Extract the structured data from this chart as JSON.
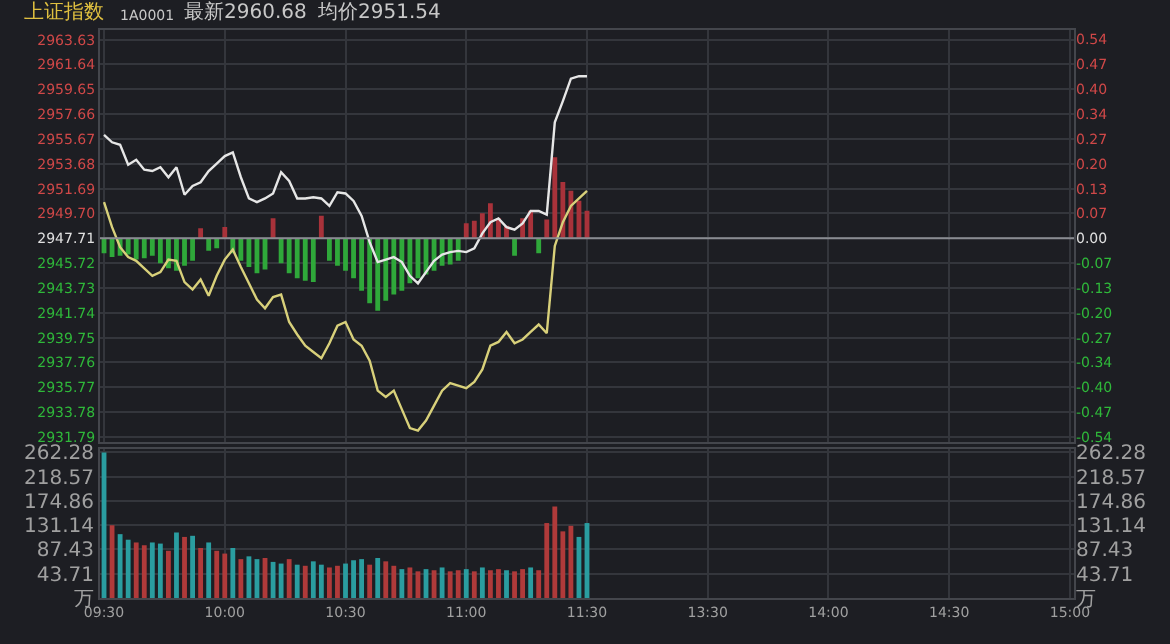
{
  "chart_data": [
    {
      "type": "line",
      "title": "上证指数",
      "annotations": [
        "1A0001",
        "最新2960.68",
        "均价2951.54"
      ],
      "categories": [
        null,
        null,
        null,
        null,
        null,
        null,
        null,
        null,
        null,
        null,
        null,
        null,
        null,
        null,
        null,
        null,
        null,
        null,
        null,
        null,
        null,
        null,
        null,
        null,
        null,
        null,
        null,
        null,
        null,
        null,
        null,
        null,
        null,
        null,
        null,
        null,
        null,
        null,
        null,
        null,
        null,
        null,
        null,
        null,
        null,
        null,
        null,
        null,
        null,
        null,
        null,
        null,
        null,
        null,
        null,
        null,
        null,
        null,
        null,
        null,
        null,
        null,
        null,
        null,
        null,
        null,
        null,
        null,
        null,
        null,
        null,
        null,
        null,
        null,
        null,
        null,
        null,
        null,
        null,
        null,
        null,
        null,
        null,
        null,
        null,
        null,
        null,
        null,
        null,
        null,
        null,
        null,
        null,
        null,
        null,
        null,
        null,
        null,
        null,
        null,
        null,
        null,
        null,
        null,
        null,
        null,
        null,
        null,
        null,
        null,
        null,
        null,
        null,
        null,
        null,
        null,
        null,
        null,
        null,
        null,
        null
      ],
      "ylim": [
        2931.4,
        2964.4
      ],
      "yticks": [
        {
          "value": 2963.63,
          "label": "2963.63"
        },
        {
          "value": 2961.64,
          "label": "2961.64"
        },
        {
          "value": 2959.65,
          "label": "2959.65"
        },
        {
          "value": 2957.66,
          "label": "2957.66"
        },
        {
          "value": 2955.67,
          "label": "2955.67"
        },
        {
          "value": 2953.68,
          "label": "2953.68"
        },
        {
          "value": 2951.69,
          "label": "2951.69"
        },
        {
          "value": 2949.7,
          "label": "2949.70"
        },
        {
          "value": 2947.71,
          "label": "2947.71"
        },
        {
          "value": 2945.72,
          "label": "2945.72"
        },
        {
          "value": 2943.73,
          "label": "2943.73"
        },
        {
          "value": 2941.74,
          "label": "2941.74"
        },
        {
          "value": 2939.75,
          "label": "2939.75"
        },
        {
          "value": 2937.76,
          "label": "2937.76"
        },
        {
          "value": 2935.77,
          "label": "2935.77"
        },
        {
          "value": 2933.78,
          "label": "2933.78"
        },
        {
          "value": 2931.79,
          "label": "2931.79"
        }
      ],
      "y2lim": [
        -0.553,
        0.566
      ],
      "y2ticks": [
        {
          "value": 0.54,
          "label": "0.54"
        },
        {
          "value": 0.4725,
          "label": "0.47"
        },
        {
          "value": 0.405,
          "label": "0.40"
        },
        {
          "value": 0.3375,
          "label": "0.34"
        },
        {
          "value": 0.27,
          "label": "0.27"
        },
        {
          "value": 0.2025,
          "label": "0.20"
        },
        {
          "value": 0.135,
          "label": "0.13"
        },
        {
          "value": 0.0675,
          "label": "0.07"
        },
        {
          "value": 0,
          "label": "0.00"
        },
        {
          "value": -0.0675,
          "label": "-0.07"
        },
        {
          "value": -0.135,
          "label": "-0.13"
        },
        {
          "value": -0.2025,
          "label": "-0.20"
        },
        {
          "value": -0.27,
          "label": "-0.27"
        },
        {
          "value": -0.3375,
          "label": "-0.34"
        },
        {
          "value": -0.405,
          "label": "-0.40"
        },
        {
          "value": -0.4725,
          "label": "-0.47"
        },
        {
          "value": -0.54,
          "label": "-0.54"
        }
      ],
      "grid": true,
      "tick_labels": "y",
      "ref_lines": [
        {
          "axis": "y",
          "value": 2947.71,
          "color": "#8a8c92"
        }
      ],
      "series": [
        {
          "type": "bar",
          "base": [
            2947.71,
            2947.71,
            2947.71,
            2947.71,
            2947.71,
            2947.71,
            2947.71,
            2947.71,
            2947.71,
            2947.71,
            2947.71,
            2947.71,
            2947.71,
            2947.71,
            2947.71,
            2947.71,
            2947.71,
            2947.71,
            2947.71,
            2947.71,
            2947.71,
            2947.71,
            2947.71,
            2947.71,
            2947.71,
            2947.71,
            2947.71,
            2947.71,
            2947.71,
            2947.71,
            2947.71,
            2947.71,
            2947.71,
            2947.71,
            2947.71,
            2947.71,
            2947.71,
            2947.71,
            2947.71,
            2947.71,
            2947.71,
            2947.71,
            2947.71,
            2947.71,
            2947.71,
            2947.71,
            2947.71,
            2947.71,
            2947.71,
            2947.71,
            2947.71,
            2947.71,
            2947.71,
            2947.71,
            2947.71,
            2947.71,
            2947.71,
            2947.71,
            2947.71,
            2947.71,
            2947.71,
            null,
            null,
            null,
            null,
            null,
            null,
            null,
            null,
            null,
            null,
            null,
            null,
            null,
            null,
            null,
            null,
            null,
            null,
            null,
            null,
            null,
            null,
            null,
            null,
            null,
            null,
            null,
            null,
            null,
            null,
            null,
            null,
            null,
            null,
            null,
            null,
            null,
            null,
            null,
            null,
            null,
            null,
            null,
            null,
            null,
            null,
            null,
            null,
            null,
            null,
            null,
            null,
            null,
            null,
            null,
            null,
            null,
            null,
            null,
            null
          ],
          "values": [
            -1.2,
            -1.5,
            -1.4,
            -1.3,
            -1.7,
            -1.6,
            -1.4,
            -2.0,
            -2.4,
            -2.6,
            -2.2,
            -1.8,
            0.8,
            -1.0,
            -0.8,
            0.9,
            -1.2,
            -1.8,
            -2.3,
            -2.8,
            -2.5,
            1.6,
            -2.0,
            -2.8,
            -3.2,
            -3.4,
            -3.5,
            1.8,
            -1.8,
            -2.2,
            -2.6,
            -3.2,
            -4.2,
            -5.2,
            -5.8,
            -5.0,
            -4.5,
            -4.2,
            -3.6,
            -3.2,
            -2.9,
            -2.6,
            -2.2,
            -2.1,
            -1.8,
            1.2,
            1.4,
            2.0,
            2.8,
            1.6,
            1.0,
            -1.4,
            1.6,
            2.2,
            -1.2,
            1.5,
            6.5,
            4.5,
            3.8,
            3.0,
            2.2,
            null,
            null,
            null,
            null,
            null,
            null,
            null,
            null,
            null,
            null,
            null,
            null,
            null,
            null,
            null,
            null,
            null,
            null,
            null,
            null,
            null,
            null,
            null,
            null,
            null,
            null,
            null,
            null,
            null,
            null,
            null,
            null,
            null,
            null,
            null,
            null,
            null,
            null,
            null,
            null,
            null,
            null,
            null,
            null,
            null,
            null,
            null,
            null,
            null,
            null,
            null,
            null,
            null,
            null,
            null,
            null,
            null,
            null,
            null,
            null
          ],
          "colors": [
            "#2fa83a",
            "#2fa83a",
            "#2fa83a",
            "#2fa83a",
            "#2fa83a",
            "#2fa83a",
            "#2fa83a",
            "#2fa83a",
            "#2fa83a",
            "#2fa83a",
            "#2fa83a",
            "#2fa83a",
            "#a8323a",
            "#2fa83a",
            "#2fa83a",
            "#a8323a",
            "#2fa83a",
            "#2fa83a",
            "#2fa83a",
            "#2fa83a",
            "#2fa83a",
            "#a8323a",
            "#2fa83a",
            "#2fa83a",
            "#2fa83a",
            "#2fa83a",
            "#2fa83a",
            "#a8323a",
            "#2fa83a",
            "#2fa83a",
            "#2fa83a",
            "#2fa83a",
            "#2fa83a",
            "#2fa83a",
            "#2fa83a",
            "#2fa83a",
            "#2fa83a",
            "#2fa83a",
            "#2fa83a",
            "#2fa83a",
            "#2fa83a",
            "#2fa83a",
            "#2fa83a",
            "#2fa83a",
            "#2fa83a",
            "#a8323a",
            "#a8323a",
            "#a8323a",
            "#a8323a",
            "#a8323a",
            "#a8323a",
            "#2fa83a",
            "#a8323a",
            "#a8323a",
            "#2fa83a",
            "#a8323a",
            "#a8323a",
            "#a8323a",
            "#a8323a",
            "#a8323a",
            "#a8323a",
            null,
            null,
            null,
            null,
            null,
            null,
            null,
            null,
            null,
            null,
            null,
            null,
            null,
            null,
            null,
            null,
            null,
            null,
            null,
            null,
            null,
            null,
            null,
            null,
            null,
            null,
            null,
            null,
            null,
            null,
            null,
            null,
            null,
            null,
            null,
            null,
            null,
            null,
            null,
            null,
            null,
            null,
            null,
            null,
            null,
            null,
            null,
            null,
            null,
            null,
            null,
            null,
            null,
            null,
            null,
            null,
            null,
            null,
            null,
            null
          ]
        },
        {
          "color": "#e6e6e6",
          "values": [
            2956.0,
            2955.4,
            2955.2,
            2953.6,
            2954.0,
            2953.2,
            2953.1,
            2953.4,
            2952.6,
            2953.4,
            2951.2,
            2951.9,
            2952.2,
            2953.1,
            2953.7,
            2954.3,
            2954.6,
            2952.6,
            2950.9,
            2950.6,
            2950.9,
            2951.3,
            2953.0,
            2952.3,
            2950.9,
            2950.9,
            2951.0,
            2950.9,
            2950.3,
            2951.4,
            2951.3,
            2950.7,
            2949.5,
            2947.4,
            2945.8,
            2946.0,
            2946.2,
            2945.8,
            2944.7,
            2944.1,
            2945.0,
            2945.9,
            2946.4,
            2946.6,
            2946.7,
            2946.6,
            2946.9,
            2948.1,
            2949.0,
            2949.3,
            2948.6,
            2948.4,
            2948.9,
            2949.9,
            2949.9,
            2949.6,
            2957.0,
            2958.7,
            2960.5,
            2960.7,
            2960.7,
            null,
            null,
            null,
            null,
            null,
            null,
            null,
            null,
            null,
            null,
            null,
            null,
            null,
            null,
            null,
            null,
            null,
            null,
            null,
            null,
            null,
            null,
            null,
            null,
            null,
            null,
            null,
            null,
            null,
            null,
            null,
            null,
            null,
            null,
            null,
            null,
            null,
            null,
            null,
            null,
            null,
            null,
            null,
            null,
            null,
            null,
            null,
            null,
            null,
            null,
            null,
            null,
            null,
            null,
            null,
            null,
            null,
            null,
            null,
            null
          ]
        },
        {
          "color": "#d8d07a",
          "values": [
            2950.6,
            2948.6,
            2947.0,
            2946.2,
            2945.9,
            2945.3,
            2944.7,
            2945.0,
            2946.0,
            2945.9,
            2944.2,
            2943.6,
            2944.4,
            2943.1,
            2944.7,
            2946.0,
            2946.8,
            2945.4,
            2944.1,
            2942.8,
            2942.1,
            2943.0,
            2943.2,
            2941.0,
            2940.0,
            2939.1,
            2938.6,
            2938.1,
            2939.3,
            2940.7,
            2941.0,
            2939.6,
            2939.1,
            2937.9,
            2935.5,
            2935.0,
            2935.5,
            2934.0,
            2932.5,
            2932.3,
            2933.1,
            2934.3,
            2935.5,
            2936.1,
            2935.9,
            2935.7,
            2936.2,
            2937.2,
            2939.1,
            2939.4,
            2940.2,
            2939.3,
            2939.6,
            2940.2,
            2940.8,
            2940.1,
            2947.1,
            2949.0,
            2950.3,
            2950.9,
            2951.5,
            null,
            null,
            null,
            null,
            null,
            null,
            null,
            null,
            null,
            null,
            null,
            null,
            null,
            null,
            null,
            null,
            null,
            null,
            null,
            null,
            null,
            null,
            null,
            null,
            null,
            null,
            null,
            null,
            null,
            null,
            null,
            null,
            null,
            null,
            null,
            null,
            null,
            null,
            null,
            null,
            null,
            null,
            null,
            null,
            null,
            null,
            null,
            null,
            null,
            null,
            null,
            null,
            null,
            null,
            null,
            null,
            null,
            null,
            null,
            null
          ]
        }
      ]
    },
    {
      "type": "bar",
      "tick_labels": "xy",
      "grid": true,
      "categories": [
        "09:30",
        null,
        null,
        null,
        null,
        null,
        null,
        null,
        null,
        null,
        null,
        null,
        null,
        null,
        null,
        "10:00",
        null,
        null,
        null,
        null,
        null,
        null,
        null,
        null,
        null,
        null,
        null,
        null,
        null,
        null,
        "10:30",
        null,
        null,
        null,
        null,
        null,
        null,
        null,
        null,
        null,
        null,
        null,
        null,
        null,
        null,
        "11:00",
        null,
        null,
        null,
        null,
        null,
        null,
        null,
        null,
        null,
        null,
        null,
        null,
        null,
        null,
        "11:30",
        null,
        null,
        null,
        null,
        null,
        null,
        null,
        null,
        null,
        null,
        null,
        null,
        null,
        null,
        "13:30",
        null,
        null,
        null,
        null,
        null,
        null,
        null,
        null,
        null,
        null,
        null,
        null,
        null,
        null,
        "14:00",
        null,
        null,
        null,
        null,
        null,
        null,
        null,
        null,
        null,
        null,
        null,
        null,
        null,
        null,
        "14:30",
        null,
        null,
        null,
        null,
        null,
        null,
        null,
        null,
        null,
        null,
        null,
        null,
        null,
        null,
        "15:00"
      ],
      "ylim": [
        0,
        268
      ],
      "yticks": [
        {
          "value": 0,
          "label": "万"
        },
        {
          "value": 43.71,
          "label": "43.71"
        },
        {
          "value": 87.43,
          "label": "87.43"
        },
        {
          "value": 131.14,
          "label": "131.14"
        },
        {
          "value": 174.86,
          "label": "174.86"
        },
        {
          "value": 218.57,
          "label": "218.57"
        },
        {
          "value": 262.28,
          "label": "262.28"
        }
      ],
      "y2lim": [
        0,
        268
      ],
      "y2ticks": [
        {
          "value": 0,
          "label": "万"
        },
        {
          "value": 43.71,
          "label": "43.71"
        },
        {
          "value": 87.43,
          "label": "87.43"
        },
        {
          "value": 131.14,
          "label": "131.14"
        },
        {
          "value": 174.86,
          "label": "174.86"
        },
        {
          "value": 218.57,
          "label": "218.57"
        },
        {
          "value": 262.28,
          "label": "262.28"
        }
      ],
      "values": [
        262,
        131,
        115,
        105,
        100,
        95,
        100,
        98,
        85,
        118,
        110,
        112,
        90,
        100,
        85,
        80,
        90,
        70,
        75,
        70,
        72,
        65,
        62,
        70,
        60,
        58,
        66,
        60,
        55,
        58,
        62,
        68,
        70,
        60,
        72,
        66,
        58,
        52,
        55,
        48,
        52,
        50,
        55,
        48,
        50,
        52,
        48,
        55,
        50,
        52,
        50,
        48,
        52,
        55,
        50,
        135,
        165,
        120,
        130,
        110,
        135,
        null,
        null,
        null,
        null,
        null,
        null,
        null,
        null,
        null,
        null,
        null,
        null,
        null,
        null,
        null,
        null,
        null,
        null,
        null,
        null,
        null,
        null,
        null,
        null,
        null,
        null,
        null,
        null,
        null,
        null,
        null,
        null,
        null,
        null,
        null,
        null,
        null,
        null,
        null,
        null,
        null,
        null,
        null,
        null,
        null,
        null,
        null,
        null,
        null,
        null,
        null,
        null,
        null,
        null,
        null,
        null,
        null,
        null,
        null,
        null
      ],
      "colors": [
        "#2a9da0",
        "#b03a3a",
        "#2a9da0",
        "#2a9da0",
        "#b03a3a",
        "#b03a3a",
        "#2a9da0",
        "#2a9da0",
        "#b03a3a",
        "#2a9da0",
        "#b03a3a",
        "#2a9da0",
        "#b03a3a",
        "#2a9da0",
        "#b03a3a",
        "#b03a3a",
        "#2a9da0",
        "#b03a3a",
        "#2a9da0",
        "#2a9da0",
        "#b03a3a",
        "#2a9da0",
        "#2a9da0",
        "#b03a3a",
        "#2a9da0",
        "#b03a3a",
        "#2a9da0",
        "#2a9da0",
        "#b03a3a",
        "#b03a3a",
        "#2a9da0",
        "#2a9da0",
        "#2a9da0",
        "#b03a3a",
        "#2a9da0",
        "#b03a3a",
        "#b03a3a",
        "#2a9da0",
        "#b03a3a",
        "#b03a3a",
        "#2a9da0",
        "#b03a3a",
        "#2a9da0",
        "#b03a3a",
        "#b03a3a",
        "#2a9da0",
        "#b03a3a",
        "#2a9da0",
        "#b03a3a",
        "#b03a3a",
        "#2a9da0",
        "#b03a3a",
        "#b03a3a",
        "#2a9da0",
        "#b03a3a",
        "#b03a3a",
        "#b03a3a",
        "#b03a3a",
        "#b03a3a",
        "#2a9da0",
        "#2a9da0",
        null,
        null,
        null,
        null,
        null,
        null,
        null,
        null,
        null,
        null,
        null,
        null,
        null,
        null,
        null,
        null,
        null,
        null,
        null,
        null,
        null,
        null,
        null,
        null,
        null,
        null,
        null,
        null,
        null,
        null,
        null,
        null,
        null,
        null,
        null,
        null,
        null,
        null,
        null,
        null,
        null,
        null,
        null,
        null,
        null,
        null,
        null,
        null,
        null,
        null,
        null,
        null,
        null,
        null,
        null,
        null,
        null,
        null,
        null,
        null
      ]
    }
  ]
}
